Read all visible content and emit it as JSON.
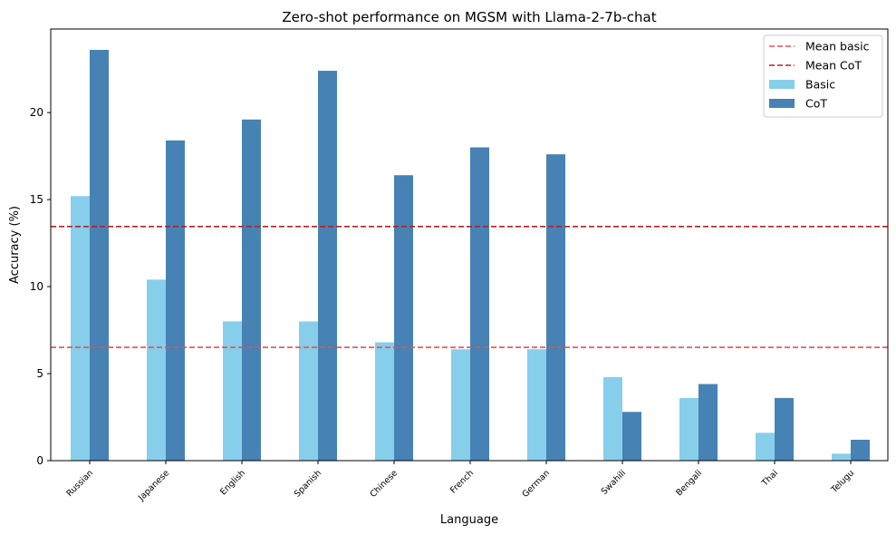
{
  "chart_data": {
    "type": "bar",
    "title": "Zero-shot performance on MGSM with Llama-2-7b-chat",
    "xlabel": "Language",
    "ylabel": "Accuracy (%)",
    "ylim": [
      0,
      24.8
    ],
    "yticks": [
      0,
      5,
      10,
      15,
      20
    ],
    "categories": [
      "Russian",
      "Japanese",
      "English",
      "Spanish",
      "Chinese",
      "French",
      "German",
      "Swahili",
      "Bengali",
      "Thai",
      "Telugu"
    ],
    "series": [
      {
        "name": "Basic",
        "color": "#87ceeb",
        "values": [
          15.2,
          10.4,
          8.0,
          8.0,
          6.8,
          6.4,
          6.4,
          4.8,
          3.6,
          1.6,
          0.4
        ]
      },
      {
        "name": "CoT",
        "color": "#4682b4",
        "values": [
          23.6,
          18.4,
          19.6,
          22.4,
          16.4,
          18.0,
          17.6,
          2.8,
          4.4,
          3.6,
          1.2
        ]
      }
    ],
    "reference_lines": [
      {
        "name": "Mean basic",
        "value": 6.51,
        "color": "#e05252",
        "style": "dashed"
      },
      {
        "name": "Mean CoT",
        "value": 13.45,
        "color": "#b22222",
        "style": "dashed"
      }
    ],
    "legend": {
      "position": "top-right",
      "entries": [
        "Mean basic",
        "Mean CoT",
        "Basic",
        "CoT"
      ]
    },
    "grid": false
  }
}
